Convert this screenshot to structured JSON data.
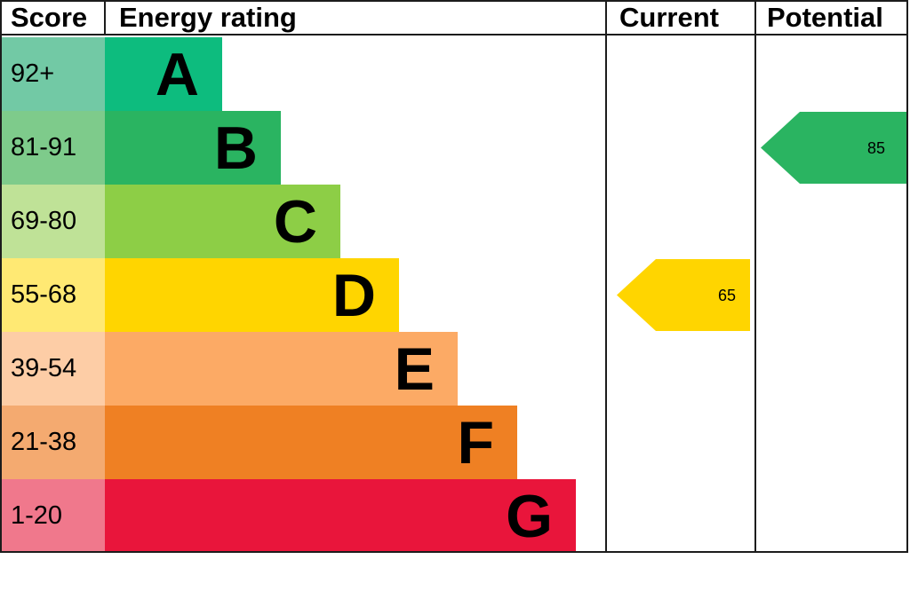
{
  "header": {
    "score": "Score",
    "energy_rating": "Energy rating",
    "current": "Current",
    "potential": "Potential"
  },
  "bands": [
    {
      "score": "92+",
      "letter": "A",
      "color": "#0dbc7e",
      "tint": "#72c9a5"
    },
    {
      "score": "81-91",
      "letter": "B",
      "color": "#2ab461",
      "tint": "#7ecb8b"
    },
    {
      "score": "69-80",
      "letter": "C",
      "color": "#8dce46",
      "tint": "#bfe297"
    },
    {
      "score": "55-68",
      "letter": "D",
      "color": "#ffd500",
      "tint": "#ffe973"
    },
    {
      "score": "39-54",
      "letter": "E",
      "color": "#fcaa65",
      "tint": "#fdcda6"
    },
    {
      "score": "21-38",
      "letter": "F",
      "color": "#ef8023",
      "tint": "#f4aa70"
    },
    {
      "score": "1-20",
      "letter": "G",
      "color": "#e9153b",
      "tint": "#f0788c"
    }
  ],
  "current": {
    "value": "65",
    "band_index": 3,
    "color": "#ffd500"
  },
  "potential": {
    "value": "85",
    "band_index": 1,
    "color": "#2ab461"
  },
  "chart_data": {
    "type": "bar",
    "title": "Energy rating",
    "categories": [
      "A",
      "B",
      "C",
      "D",
      "E",
      "F",
      "G"
    ],
    "score_ranges": [
      "92+",
      "81-91",
      "69-80",
      "55-68",
      "39-54",
      "21-38",
      "1-20"
    ],
    "band_colors": [
      "#0dbc7e",
      "#2ab461",
      "#8dce46",
      "#ffd500",
      "#fcaa65",
      "#ef8023",
      "#e9153b"
    ],
    "markers": [
      {
        "name": "Current",
        "value": 65,
        "band": "D",
        "color": "#ffd500"
      },
      {
        "name": "Potential",
        "value": 85,
        "band": "B",
        "color": "#2ab461"
      }
    ],
    "legend_position": "none",
    "grid": false
  }
}
